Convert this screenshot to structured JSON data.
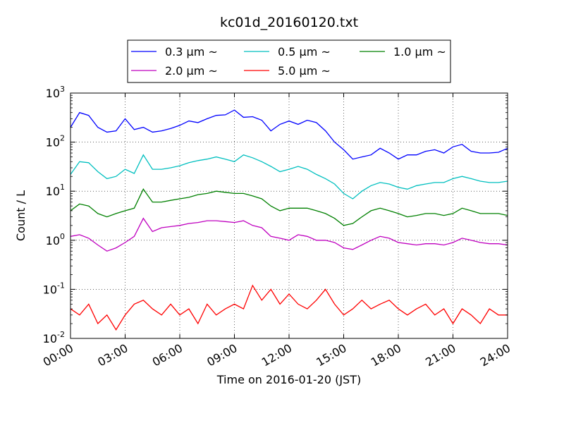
{
  "chart_data": {
    "type": "line",
    "title": "kc01d_20160120.txt",
    "xlabel": "Time on 2016-01-20 (JST)",
    "ylabel": "Count / L",
    "xlim": [
      0,
      24
    ],
    "ylim": [
      0.01,
      1000
    ],
    "yscale": "log",
    "grid": true,
    "legend_position": "top",
    "x_ticks": [
      "00:00",
      "03:00",
      "06:00",
      "09:00",
      "12:00",
      "15:00",
      "18:00",
      "21:00",
      "24:00"
    ],
    "y_ticks": [
      {
        "base": "10",
        "exp": "-2"
      },
      {
        "base": "10",
        "exp": "-1"
      },
      {
        "base": "10",
        "exp": "0"
      },
      {
        "base": "10",
        "exp": "1"
      },
      {
        "base": "10",
        "exp": "2"
      },
      {
        "base": "10",
        "exp": "3"
      }
    ],
    "x": [
      0,
      0.5,
      1,
      1.5,
      2,
      2.5,
      3,
      3.5,
      4,
      4.5,
      5,
      5.5,
      6,
      6.5,
      7,
      7.5,
      8,
      8.5,
      9,
      9.5,
      10,
      10.5,
      11,
      11.5,
      12,
      12.5,
      13,
      13.5,
      14,
      14.5,
      15,
      15.5,
      16,
      16.5,
      17,
      17.5,
      18,
      18.5,
      19,
      19.5,
      20,
      20.5,
      21,
      21.5,
      22,
      22.5,
      23,
      23.5,
      24
    ],
    "series": [
      {
        "name": "0.3 μm ~",
        "color": "#0000ff",
        "values": [
          200,
          400,
          350,
          200,
          160,
          170,
          300,
          180,
          200,
          160,
          170,
          190,
          220,
          270,
          250,
          300,
          350,
          360,
          450,
          320,
          330,
          280,
          170,
          230,
          270,
          230,
          280,
          250,
          170,
          100,
          70,
          45,
          50,
          55,
          75,
          60,
          45,
          55,
          55,
          65,
          70,
          60,
          80,
          90,
          65,
          60,
          60,
          62,
          75
        ]
      },
      {
        "name": "0.5 μm ~",
        "color": "#00bfbf",
        "values": [
          22,
          40,
          38,
          25,
          18,
          20,
          28,
          23,
          55,
          28,
          28,
          30,
          33,
          38,
          42,
          45,
          50,
          45,
          40,
          55,
          48,
          40,
          32,
          25,
          28,
          32,
          28,
          22,
          18,
          14,
          9,
          7,
          10,
          13,
          15,
          14,
          12,
          11,
          13,
          14,
          15,
          15,
          18,
          20,
          18,
          16,
          15,
          15,
          16
        ]
      },
      {
        "name": "1.0 μm ~",
        "color": "#008000",
        "values": [
          4,
          5.5,
          5,
          3.5,
          3,
          3.5,
          4,
          4.5,
          11,
          6,
          6,
          6.5,
          7,
          7.5,
          8.5,
          9,
          10,
          9.5,
          9,
          9,
          8,
          7,
          5,
          4,
          4.5,
          4.5,
          4.5,
          4,
          3.5,
          2.8,
          2,
          2.2,
          3,
          4,
          4.5,
          4,
          3.5,
          3,
          3.2,
          3.5,
          3.5,
          3.2,
          3.5,
          4.5,
          4,
          3.5,
          3.5,
          3.5,
          3.2
        ]
      },
      {
        "name": "2.0 μm ~",
        "color": "#bf00bf",
        "values": [
          1.2,
          1.3,
          1.1,
          0.8,
          0.6,
          0.7,
          0.9,
          1.2,
          2.8,
          1.5,
          1.8,
          1.9,
          2,
          2.2,
          2.3,
          2.5,
          2.5,
          2.4,
          2.3,
          2.5,
          2,
          1.8,
          1.2,
          1.1,
          1,
          1.3,
          1.2,
          1,
          1,
          0.9,
          0.7,
          0.65,
          0.8,
          1,
          1.2,
          1.1,
          0.9,
          0.85,
          0.8,
          0.85,
          0.85,
          0.8,
          0.9,
          1.1,
          1,
          0.9,
          0.85,
          0.85,
          0.8
        ]
      },
      {
        "name": "5.0 μm ~",
        "color": "#ff0000",
        "values": [
          0.04,
          0.03,
          0.05,
          0.02,
          0.03,
          0.015,
          0.03,
          0.05,
          0.06,
          0.04,
          0.03,
          0.05,
          0.03,
          0.04,
          0.02,
          0.05,
          0.03,
          0.04,
          0.05,
          0.04,
          0.12,
          0.06,
          0.1,
          0.05,
          0.08,
          0.05,
          0.04,
          0.06,
          0.1,
          0.05,
          0.03,
          0.04,
          0.06,
          0.04,
          0.05,
          0.06,
          0.04,
          0.03,
          0.04,
          0.05,
          0.03,
          0.04,
          0.02,
          0.04,
          0.03,
          0.02,
          0.04,
          0.03,
          0.03
        ]
      }
    ]
  }
}
